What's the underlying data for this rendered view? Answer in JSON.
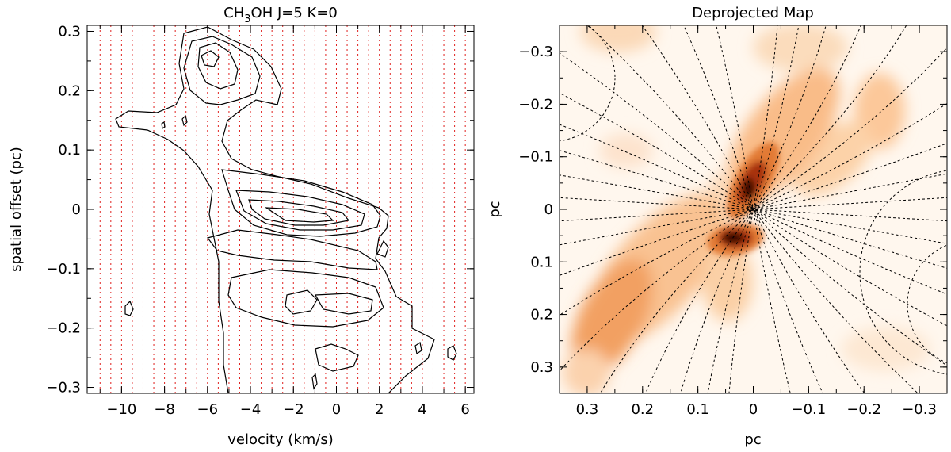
{
  "chart_data": [
    {
      "type": "contour",
      "title": "CH3OH J=5 K=0",
      "title_parts": {
        "prefix": "CH",
        "subscript": "3",
        "suffix": "OH J=5 K=0"
      },
      "xlabel": "velocity (km/s)",
      "ylabel": "spatial offset (pc)",
      "xlim": [
        -11.6,
        6.4
      ],
      "ylim": [
        -0.31,
        0.31
      ],
      "x_ticks": [
        -10,
        -8,
        -6,
        -4,
        -2,
        0,
        2,
        4,
        6
      ],
      "x_tick_labels": [
        "−10",
        "−8",
        "−6",
        "−4",
        "−2",
        "0",
        "2",
        "4",
        "6"
      ],
      "y_ticks": [
        0.3,
        0.2,
        0.1,
        0,
        -0.1,
        -0.2,
        -0.3
      ],
      "y_tick_labels": [
        "0.3",
        "0.2",
        "0.1",
        "0",
        "−0.1",
        "−0.2",
        "−0.3"
      ],
      "vertical_dotted_lines_color": "#e0201e",
      "contour_color": "#000000"
    },
    {
      "type": "heatmap",
      "title": "Deprojected Map",
      "xlabel": "pc",
      "ylabel": "pc",
      "xlim": [
        0.35,
        -0.35
      ],
      "ylim": [
        -0.35,
        0.35
      ],
      "x_ticks": [
        0.3,
        0.2,
        0.1,
        0,
        -0.1,
        -0.2,
        -0.3
      ],
      "x_tick_labels": [
        "0.3",
        "0.2",
        "0.1",
        "0",
        "−0.1",
        "−0.2",
        "−0.3"
      ],
      "y_ticks": [
        -0.3,
        -0.2,
        -0.1,
        0,
        0.1,
        0.2,
        0.3
      ],
      "y_tick_labels": [
        "−0.3",
        "−0.2",
        "−0.1",
        "0",
        "0.1",
        "0.2",
        "0.3"
      ],
      "colormap": [
        "#fff7ee",
        "#fbcf9f",
        "#f08a3a",
        "#c23f12",
        "#3b0a06"
      ]
    }
  ]
}
